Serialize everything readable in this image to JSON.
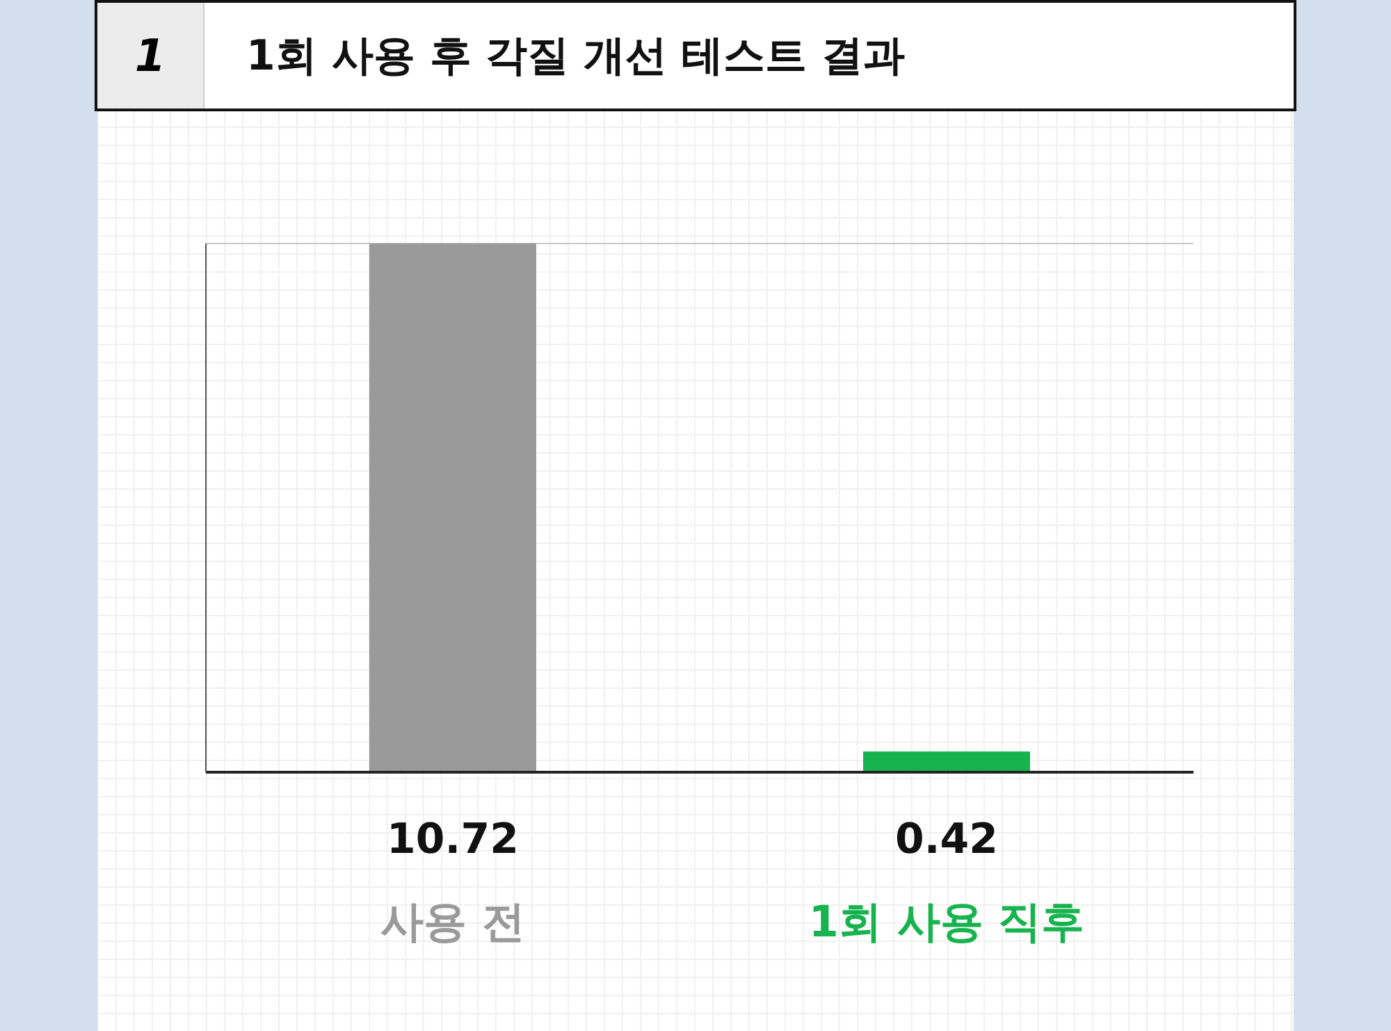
{
  "chart_data": {
    "type": "bar",
    "title": "1회 사용 후 각질 개선 테스트 결과",
    "annotations": [
      "1"
    ],
    "categories": [
      "사용 전",
      "1회 사용 직후"
    ],
    "values": [
      10.72,
      0.42
    ],
    "colors": [
      "#9a9a9a",
      "#17b34f"
    ],
    "data_labels": true,
    "grid": "y"
  }
}
